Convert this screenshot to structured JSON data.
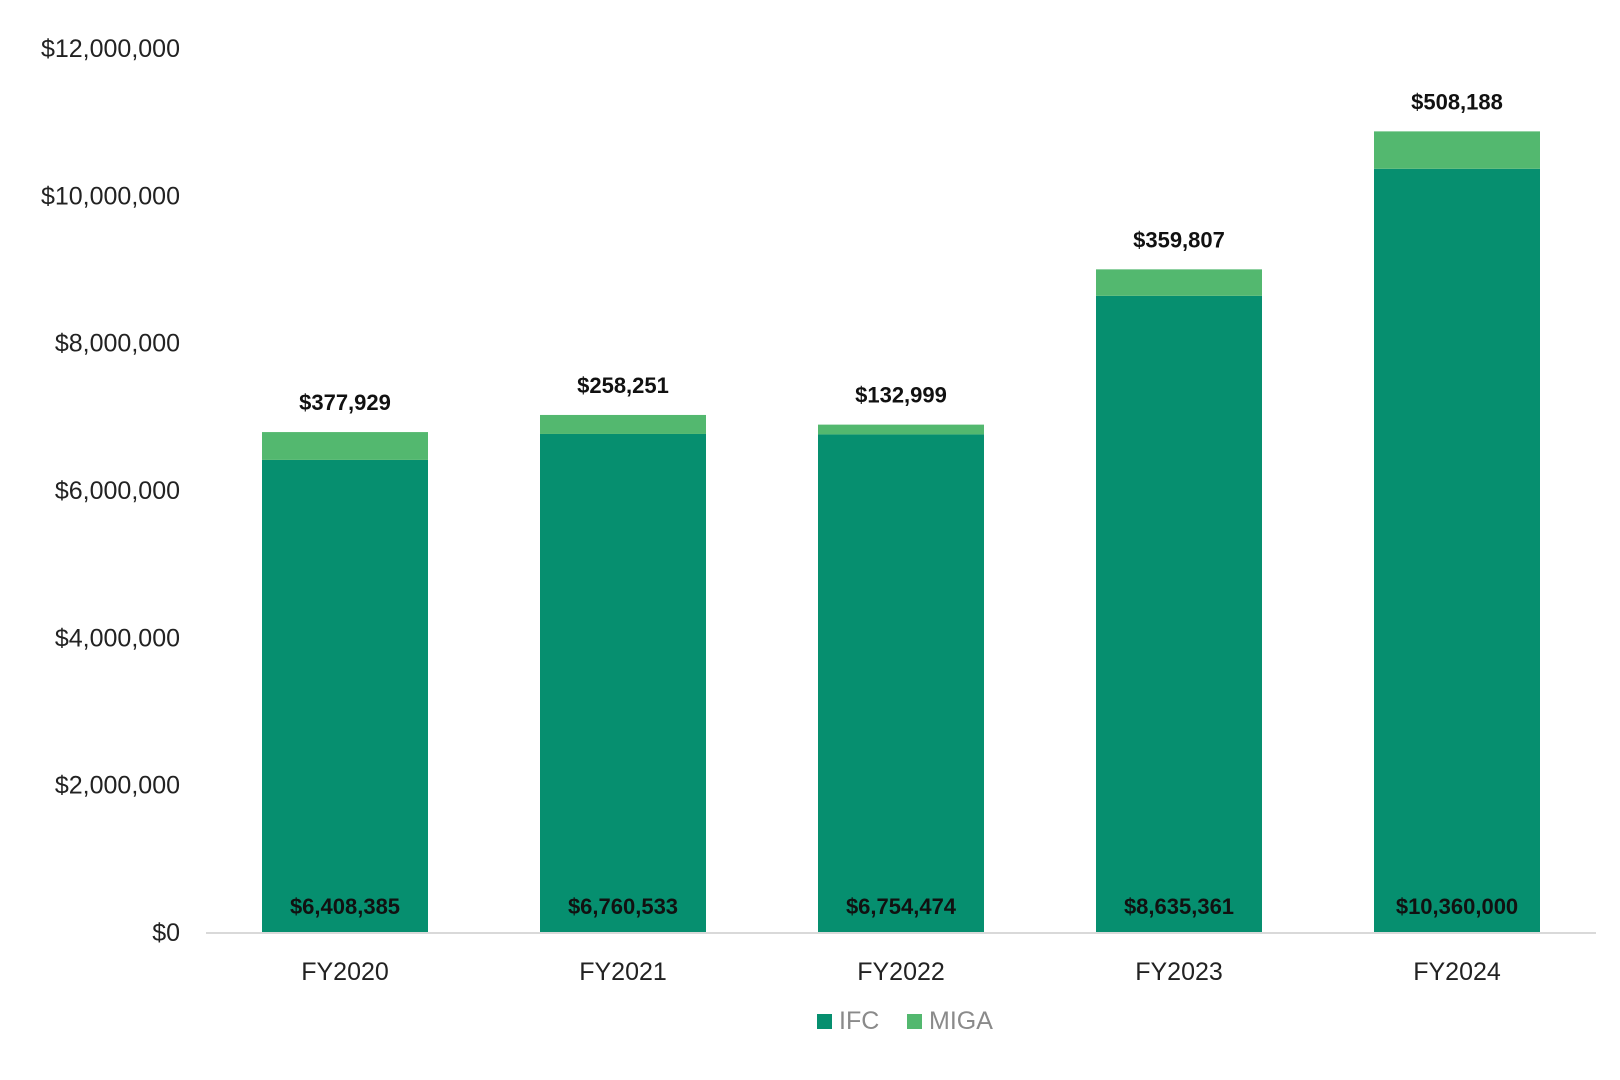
{
  "chart_data": {
    "type": "bar",
    "stacked": true,
    "categories": [
      "FY2020",
      "FY2021",
      "FY2022",
      "FY2023",
      "FY2024"
    ],
    "series": [
      {
        "name": "IFC",
        "color": "#068f6f",
        "values": [
          6408385,
          6760533,
          6754474,
          8635361,
          10360000
        ],
        "labels": [
          "$6,408,385",
          "$6,760,533",
          "$6,754,474",
          "$8,635,361",
          "$10,360,000"
        ]
      },
      {
        "name": "MIGA",
        "color": "#53b86f",
        "values": [
          377929,
          258251,
          132999,
          359807,
          508188
        ],
        "labels": [
          "$377,929",
          "$258,251",
          "$132,999",
          "$359,807",
          "$508,188"
        ]
      }
    ],
    "y_ticks": [
      0,
      2000000,
      4000000,
      6000000,
      8000000,
      10000000,
      12000000
    ],
    "y_tick_labels": [
      "$0",
      "$2,000,000",
      "$4,000,000",
      "$6,000,000",
      "$8,000,000",
      "$10,000,000",
      "$12,000,000"
    ],
    "ylim": [
      0,
      12000000
    ],
    "title": "",
    "xlabel": "",
    "ylabel": "",
    "grid": false,
    "legend_position": "bottom-center",
    "axis_color": "#d9d9d9"
  }
}
